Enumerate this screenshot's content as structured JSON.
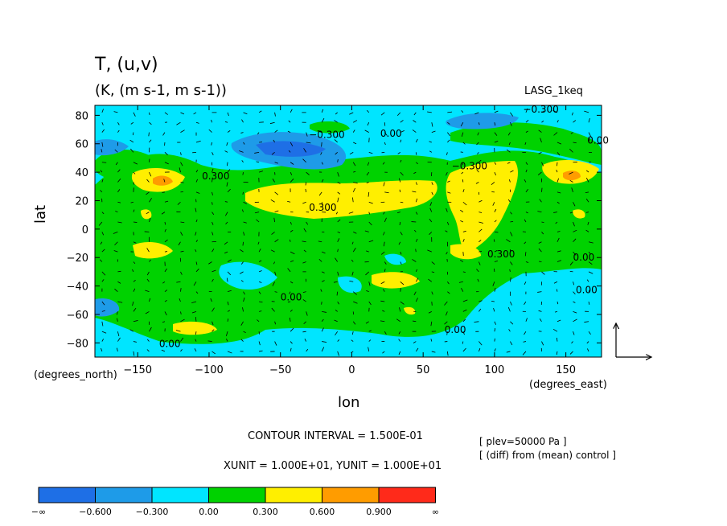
{
  "chart_data": {
    "type": "heatmap",
    "title": "T, (u,v)",
    "units_line": "(K, (m s-1, m s-1))",
    "experiment": "LASG_1keq",
    "xlabel": "lon",
    "ylabel": "lat",
    "x_unit_label": "(degrees_east)",
    "y_unit_label": "(degrees_north)",
    "xlim": [
      -180,
      175
    ],
    "ylim": [
      -90,
      87
    ],
    "x_ticks": [
      -150,
      -100,
      -50,
      0,
      50,
      100,
      150
    ],
    "y_ticks": [
      -80,
      -60,
      -40,
      -20,
      0,
      20,
      40,
      60,
      80
    ],
    "contour_interval_text": "CONTOUR INTERVAL = 1.500E-01",
    "units_text": "XUNIT = 1.000E+01, YUNIT = 1.000E+01",
    "plev_text": "[ plev=50000 Pa ]",
    "diff_text": "[ (diff) from (mean) control ]",
    "colorbar": {
      "labels": [
        "-∞",
        "-0.600",
        "-0.300",
        "0.00",
        "0.300",
        "0.600",
        "0.900",
        "∞"
      ],
      "colors": [
        "#1e6fe6",
        "#1e9be8",
        "#00e5ff",
        "#00d200",
        "#ffef00",
        "#ff9c00",
        "#ff2a1a"
      ]
    },
    "contour_labels": [
      {
        "lon": 120,
        "lat": 82,
        "text": "-0.300"
      },
      {
        "lon": -30,
        "lat": 64,
        "text": "-0.300"
      },
      {
        "lon": 20,
        "lat": 65,
        "text": "0.00"
      },
      {
        "lon": 70,
        "lat": 42,
        "text": "-0.300"
      },
      {
        "lon": 165,
        "lat": 60,
        "text": "0.00"
      },
      {
        "lon": -105,
        "lat": 35,
        "text": "0.300"
      },
      {
        "lon": -30,
        "lat": 13,
        "text": "0.300"
      },
      {
        "lon": 95,
        "lat": -20,
        "text": "0.300"
      },
      {
        "lon": 155,
        "lat": -22,
        "text": "0.00"
      },
      {
        "lon": 157,
        "lat": -45,
        "text": "0.00"
      },
      {
        "lon": -50,
        "lat": -50,
        "text": "0.00"
      },
      {
        "lon": 65,
        "lat": -73,
        "text": "0.00"
      },
      {
        "lon": -135,
        "lat": -83,
        "text": "0.00"
      }
    ],
    "legend_vectors": "reference arrows (u east, v north)"
  }
}
